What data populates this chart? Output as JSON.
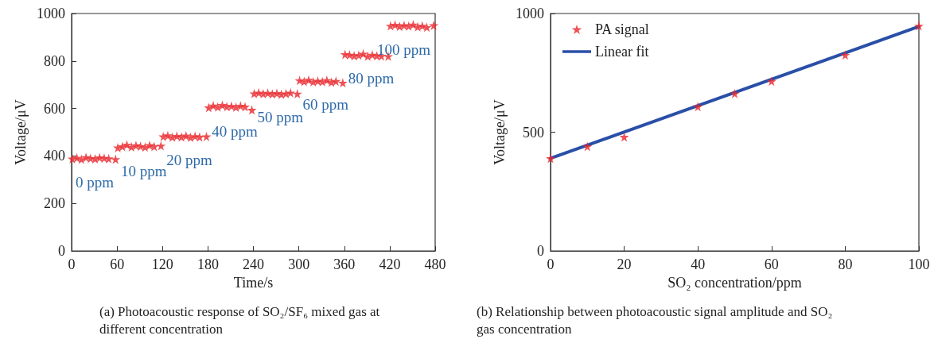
{
  "chart_data": [
    {
      "type": "scatter",
      "title": "(a) Photoacoustic response of SO₂/SF₆ mixed gas at different concentration",
      "xlabel": "Time/s",
      "ylabel": "Voltage/μV",
      "color": "#e8262b",
      "marker": "star",
      "x": [
        1,
        7,
        13,
        19,
        25,
        31,
        37,
        43,
        49,
        58,
        61,
        67,
        73,
        79,
        85,
        91,
        97,
        103,
        109,
        118,
        121,
        127,
        133,
        139,
        145,
        151,
        157,
        163,
        169,
        178,
        181,
        187,
        193,
        199,
        205,
        211,
        217,
        223,
        229,
        238,
        241,
        247,
        253,
        259,
        265,
        271,
        277,
        283,
        289,
        298,
        301,
        307,
        313,
        319,
        325,
        331,
        337,
        343,
        349,
        358,
        361,
        367,
        373,
        379,
        385,
        391,
        397,
        403,
        409,
        418,
        421,
        427,
        433,
        439,
        445,
        451,
        457,
        463,
        469,
        478
      ],
      "values": [
        388,
        392,
        386,
        394,
        390,
        388,
        393,
        391,
        389,
        386,
        435,
        440,
        447,
        438,
        444,
        441,
        437,
        445,
        440,
        443,
        482,
        486,
        479,
        484,
        480,
        485,
        478,
        483,
        480,
        482,
        604,
        612,
        606,
        614,
        608,
        610,
        605,
        611,
        607,
        594,
        663,
        666,
        662,
        665,
        661,
        664,
        660,
        663,
        666,
        662,
        718,
        714,
        720,
        712,
        716,
        713,
        719,
        711,
        715,
        708,
        828,
        826,
        822,
        824,
        830,
        820,
        826,
        822,
        821,
        820,
        948,
        952,
        946,
        950,
        947,
        953,
        944,
        948,
        942,
        950
      ],
      "xlim": [
        0,
        480
      ],
      "xticks": [
        0,
        60,
        120,
        180,
        240,
        300,
        360,
        420,
        480
      ],
      "ylim": [
        0,
        1000
      ],
      "yticks": [
        0,
        200,
        400,
        600,
        800,
        1000
      ],
      "grid": false,
      "legend": false,
      "annotations": [
        {
          "text": "0 ppm",
          "x": 1,
          "y": 388
        },
        {
          "text": "10 ppm",
          "x": 61,
          "y": 435
        },
        {
          "text": "20 ppm",
          "x": 121,
          "y": 482
        },
        {
          "text": "40 ppm",
          "x": 181,
          "y": 604
        },
        {
          "text": "50 ppm",
          "x": 241,
          "y": 663
        },
        {
          "text": "60 ppm",
          "x": 301,
          "y": 718
        },
        {
          "text": "80 ppm",
          "x": 361,
          "y": 828
        },
        {
          "text": "100 ppm",
          "x": 421,
          "y": 948
        }
      ]
    },
    {
      "type": "scatter",
      "title": "(b) Relationship between photoacoustic signal amplitude and SO₂ gas concentration",
      "xlabel": "SO₂ concentration/ppm",
      "ylabel": "Voltage/μV",
      "grid": false,
      "legend": "top left",
      "xlim": [
        0,
        100
      ],
      "xticks": [
        0,
        20,
        40,
        60,
        80,
        100
      ],
      "ylim": [
        0,
        1000
      ],
      "yticks": [
        0,
        500,
        1000
      ],
      "series": [
        {
          "name": "PA signal",
          "marker": "star",
          "color": "#e8262b",
          "x": [
            0,
            10,
            20,
            40,
            50,
            60,
            80,
            100
          ],
          "values": [
            390,
            440,
            480,
            608,
            663,
            715,
            825,
            948
          ]
        },
        {
          "name": "Linear fit",
          "type": "line",
          "color": "#2a4fa8",
          "line_style": "solid",
          "x": [
            0,
            100
          ],
          "values": [
            390,
            945
          ]
        }
      ]
    }
  ]
}
